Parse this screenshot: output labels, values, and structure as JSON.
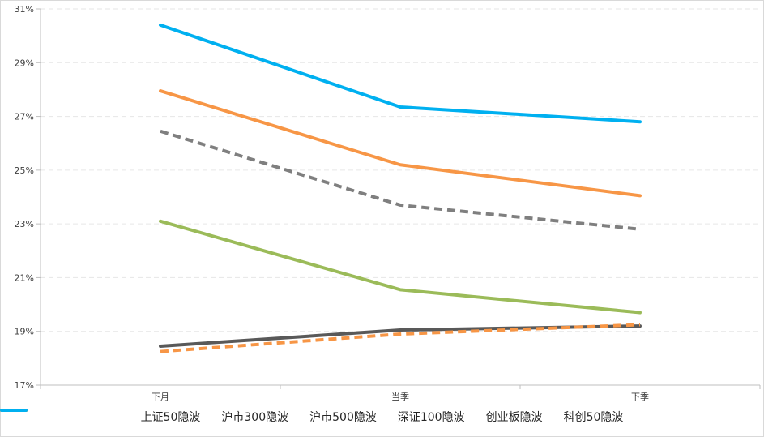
{
  "chart_data": {
    "type": "line",
    "title": "",
    "xlabel": "",
    "ylabel": "",
    "categories": [
      "下月",
      "当季",
      "下季"
    ],
    "ylim": [
      17,
      31
    ],
    "yticks": [
      "17%",
      "19%",
      "21%",
      "23%",
      "25%",
      "27%",
      "29%",
      "31%"
    ],
    "grid": true,
    "legend_position": "bottom",
    "series": [
      {
        "name": "上证50隐波",
        "values": [
          18.45,
          19.05,
          19.2
        ],
        "color": "#595959",
        "dash": "solid"
      },
      {
        "name": "沪市300隐波",
        "values": [
          18.25,
          18.9,
          19.25
        ],
        "color": "#f79646",
        "dash": "dashed"
      },
      {
        "name": "沪市500隐波",
        "values": [
          26.45,
          23.7,
          22.8
        ],
        "color": "#7f7f7f",
        "dash": "dashed"
      },
      {
        "name": "深证100隐波",
        "values": [
          23.1,
          20.55,
          19.7
        ],
        "color": "#9bbb59",
        "dash": "solid"
      },
      {
        "name": "创业板隐波",
        "values": [
          27.95,
          25.2,
          24.05
        ],
        "color": "#f79646",
        "dash": "solid"
      },
      {
        "name": "科创50隐波",
        "values": [
          30.4,
          27.35,
          26.8
        ],
        "color": "#00b0f0",
        "dash": "solid"
      }
    ]
  }
}
